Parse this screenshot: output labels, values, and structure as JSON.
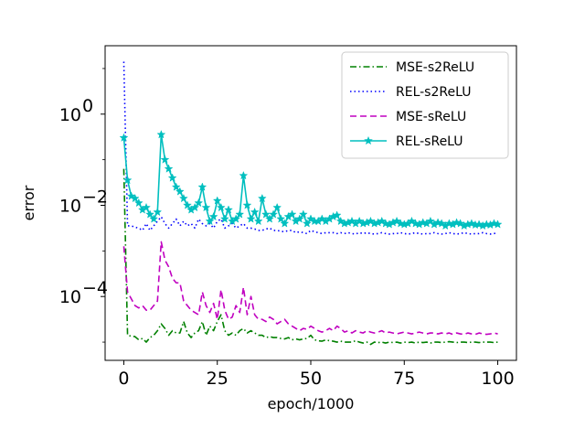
{
  "chart_data": {
    "type": "line",
    "title": "",
    "xlabel": "epoch/1000",
    "ylabel": "error",
    "yscale": "log",
    "xlim": [
      -5,
      105
    ],
    "ylim_log10": [
      -5.4,
      1.5
    ],
    "xticks": [
      0,
      25,
      50,
      75,
      100
    ],
    "xtick_labels": [
      "0",
      "25",
      "50",
      "75",
      "100"
    ],
    "yticks": [
      -4,
      -2,
      0
    ],
    "ytick_labels": [
      "10",
      "10",
      "10"
    ],
    "ytick_exponents": [
      "−4",
      "−2",
      "0"
    ],
    "grid": false,
    "legend_position": "top-right",
    "series": [
      {
        "name": "MSE-s2ReLU",
        "color": "#008000",
        "dash": "dashdot",
        "marker": "none",
        "x": [
          0,
          1,
          2,
          3,
          4,
          5,
          6,
          7,
          8,
          9,
          10,
          11,
          12,
          13,
          14,
          15,
          16,
          17,
          18,
          19,
          20,
          21,
          22,
          23,
          24,
          25,
          26,
          27,
          28,
          29,
          30,
          31,
          32,
          33,
          34,
          35,
          36,
          37,
          38,
          39,
          40,
          41,
          42,
          43,
          44,
          45,
          46,
          47,
          48,
          49,
          50,
          51,
          52,
          53,
          54,
          55,
          56,
          57,
          58,
          59,
          60,
          61,
          62,
          63,
          64,
          65,
          66,
          67,
          68,
          69,
          70,
          71,
          72,
          73,
          74,
          75,
          76,
          77,
          78,
          79,
          80,
          81,
          82,
          83,
          84,
          85,
          86,
          87,
          88,
          89,
          90,
          91,
          92,
          93,
          94,
          95,
          96,
          97,
          98,
          99,
          100
        ],
        "y_log10": [
          -1.2,
          -4.85,
          -4.87,
          -4.88,
          -4.95,
          -4.92,
          -5.0,
          -4.9,
          -4.85,
          -4.75,
          -4.6,
          -4.7,
          -4.85,
          -4.75,
          -4.8,
          -4.8,
          -4.55,
          -4.8,
          -4.9,
          -4.8,
          -4.75,
          -4.55,
          -4.85,
          -4.65,
          -4.75,
          -4.55,
          -4.4,
          -4.75,
          -4.85,
          -4.8,
          -4.85,
          -4.75,
          -4.7,
          -4.8,
          -4.75,
          -4.8,
          -4.85,
          -4.85,
          -4.9,
          -4.88,
          -4.9,
          -4.9,
          -4.92,
          -4.93,
          -4.9,
          -4.95,
          -4.93,
          -4.95,
          -4.93,
          -4.92,
          -4.85,
          -4.95,
          -4.97,
          -4.98,
          -4.95,
          -4.97,
          -4.98,
          -5.0,
          -4.98,
          -5.0,
          -5.0,
          -5.0,
          -4.97,
          -5.0,
          -5.02,
          -5.0,
          -5.05,
          -5.0,
          -5.01,
          -5.0,
          -5.02,
          -5.0,
          -5.01,
          -5.0,
          -5.02,
          -5.0,
          -5.01,
          -5.0,
          -5.02,
          -5.0,
          -5.01,
          -5.0,
          -5.02,
          -5.0,
          -5.0,
          -5.01,
          -5.0,
          -4.99,
          -5.0,
          -5.01,
          -5.0,
          -5.0,
          -5.01,
          -5.0,
          -5.0,
          -5.01,
          -5.0,
          -5.0,
          -5.0,
          -5.01,
          -5.0
        ]
      },
      {
        "name": "REL-s2ReLU",
        "color": "#0000ff",
        "dash": "dotted",
        "marker": "none",
        "x": [
          0,
          1,
          2,
          3,
          4,
          5,
          6,
          7,
          8,
          9,
          10,
          11,
          12,
          13,
          14,
          15,
          16,
          17,
          18,
          19,
          20,
          21,
          22,
          23,
          24,
          25,
          26,
          27,
          28,
          29,
          30,
          31,
          32,
          33,
          34,
          35,
          36,
          37,
          38,
          39,
          40,
          41,
          42,
          43,
          44,
          45,
          46,
          47,
          48,
          49,
          50,
          51,
          52,
          53,
          54,
          55,
          56,
          57,
          58,
          59,
          60,
          61,
          62,
          63,
          64,
          65,
          66,
          67,
          68,
          69,
          70,
          71,
          72,
          73,
          74,
          75,
          76,
          77,
          78,
          79,
          80,
          81,
          82,
          83,
          84,
          85,
          86,
          87,
          88,
          89,
          90,
          91,
          92,
          93,
          94,
          95,
          96,
          97,
          98,
          99,
          100
        ],
        "y_log10": [
          1.15,
          -2.45,
          -2.45,
          -2.48,
          -2.5,
          -2.55,
          -2.4,
          -2.55,
          -2.45,
          -2.35,
          -2.25,
          -2.4,
          -2.5,
          -2.4,
          -2.3,
          -2.45,
          -2.35,
          -2.45,
          -2.4,
          -2.5,
          -2.3,
          -2.4,
          -2.45,
          -2.4,
          -2.5,
          -2.35,
          -2.3,
          -2.5,
          -2.45,
          -2.4,
          -2.5,
          -2.45,
          -2.4,
          -2.5,
          -2.5,
          -2.52,
          -2.55,
          -2.55,
          -2.52,
          -2.5,
          -2.55,
          -2.55,
          -2.57,
          -2.58,
          -2.55,
          -2.55,
          -2.6,
          -2.58,
          -2.6,
          -2.62,
          -2.55,
          -2.58,
          -2.6,
          -2.62,
          -2.6,
          -2.6,
          -2.6,
          -2.62,
          -2.6,
          -2.62,
          -2.6,
          -2.62,
          -2.63,
          -2.6,
          -2.62,
          -2.6,
          -2.62,
          -2.63,
          -2.62,
          -2.6,
          -2.62,
          -2.63,
          -2.62,
          -2.62,
          -2.6,
          -2.62,
          -2.63,
          -2.62,
          -2.6,
          -2.62,
          -2.63,
          -2.62,
          -2.62,
          -2.6,
          -2.62,
          -2.63,
          -2.62,
          -2.6,
          -2.62,
          -2.63,
          -2.62,
          -2.6,
          -2.62,
          -2.63,
          -2.62,
          -2.62,
          -2.6,
          -2.62,
          -2.63,
          -2.62,
          -2.6
        ]
      },
      {
        "name": "MSE-sReLU",
        "color": "#c000c0",
        "dash": "dashed",
        "marker": "none",
        "x": [
          0,
          1,
          2,
          3,
          4,
          5,
          6,
          7,
          8,
          9,
          10,
          11,
          12,
          13,
          14,
          15,
          16,
          17,
          18,
          19,
          20,
          21,
          22,
          23,
          24,
          25,
          26,
          27,
          28,
          29,
          30,
          31,
          32,
          33,
          34,
          35,
          36,
          37,
          38,
          39,
          40,
          41,
          42,
          43,
          44,
          45,
          46,
          47,
          48,
          49,
          50,
          51,
          52,
          53,
          54,
          55,
          56,
          57,
          58,
          59,
          60,
          61,
          62,
          63,
          64,
          65,
          66,
          67,
          68,
          69,
          70,
          71,
          72,
          73,
          74,
          75,
          76,
          77,
          78,
          79,
          80,
          81,
          82,
          83,
          84,
          85,
          86,
          87,
          88,
          89,
          90,
          91,
          92,
          93,
          94,
          95,
          96,
          97,
          98,
          99,
          100
        ],
        "y_log10": [
          -2.9,
          -3.9,
          -4.05,
          -4.2,
          -4.25,
          -4.2,
          -4.3,
          -4.3,
          -4.2,
          -4.1,
          -2.8,
          -3.2,
          -3.35,
          -3.6,
          -3.7,
          -3.7,
          -4.1,
          -4.2,
          -4.3,
          -4.35,
          -4.4,
          -3.9,
          -4.2,
          -4.35,
          -4.15,
          -4.5,
          -3.85,
          -4.3,
          -4.5,
          -4.45,
          -4.2,
          -4.35,
          -3.8,
          -4.4,
          -4.0,
          -4.4,
          -4.5,
          -4.5,
          -4.55,
          -4.45,
          -4.5,
          -4.6,
          -4.55,
          -4.5,
          -4.6,
          -4.65,
          -4.7,
          -4.75,
          -4.7,
          -4.72,
          -4.65,
          -4.7,
          -4.75,
          -4.78,
          -4.75,
          -4.7,
          -4.75,
          -4.65,
          -4.7,
          -4.78,
          -4.75,
          -4.8,
          -4.75,
          -4.78,
          -4.8,
          -4.75,
          -4.78,
          -4.8,
          -4.78,
          -4.75,
          -4.8,
          -4.78,
          -4.8,
          -4.82,
          -4.8,
          -4.78,
          -4.8,
          -4.82,
          -4.8,
          -4.78,
          -4.8,
          -4.82,
          -4.8,
          -4.8,
          -4.82,
          -4.8,
          -4.82,
          -4.8,
          -4.83,
          -4.8,
          -4.82,
          -4.83,
          -4.8,
          -4.82,
          -4.83,
          -4.8,
          -4.82,
          -4.83,
          -4.82,
          -4.8,
          -4.82
        ]
      },
      {
        "name": "REL-sReLU",
        "color": "#00bfbf",
        "dash": "solid",
        "marker": "star",
        "x": [
          0,
          1,
          2,
          3,
          4,
          5,
          6,
          7,
          8,
          9,
          10,
          11,
          12,
          13,
          14,
          15,
          16,
          17,
          18,
          19,
          20,
          21,
          22,
          23,
          24,
          25,
          26,
          27,
          28,
          29,
          30,
          31,
          32,
          33,
          34,
          35,
          36,
          37,
          38,
          39,
          40,
          41,
          42,
          43,
          44,
          45,
          46,
          47,
          48,
          49,
          50,
          51,
          52,
          53,
          54,
          55,
          56,
          57,
          58,
          59,
          60,
          61,
          62,
          63,
          64,
          65,
          66,
          67,
          68,
          69,
          70,
          71,
          72,
          73,
          74,
          75,
          76,
          77,
          78,
          79,
          80,
          81,
          82,
          83,
          84,
          85,
          86,
          87,
          88,
          89,
          90,
          91,
          92,
          93,
          94,
          95,
          96,
          97,
          98,
          99,
          100
        ],
        "y_log10": [
          -0.52,
          -1.45,
          -1.8,
          -1.85,
          -1.95,
          -2.1,
          -2.05,
          -2.2,
          -2.3,
          -2.15,
          -0.45,
          -1.0,
          -1.2,
          -1.4,
          -1.6,
          -1.7,
          -1.85,
          -2.0,
          -2.1,
          -2.05,
          -1.95,
          -1.6,
          -2.05,
          -2.35,
          -2.25,
          -1.9,
          -2.05,
          -2.3,
          -2.1,
          -2.35,
          -2.3,
          -2.2,
          -1.35,
          -2.0,
          -2.3,
          -2.15,
          -2.35,
          -1.85,
          -2.2,
          -2.3,
          -2.2,
          -2.05,
          -2.3,
          -2.4,
          -2.25,
          -2.2,
          -2.35,
          -2.3,
          -2.2,
          -2.4,
          -2.3,
          -2.35,
          -2.35,
          -2.3,
          -2.35,
          -2.3,
          -2.25,
          -2.22,
          -2.35,
          -2.4,
          -2.38,
          -2.35,
          -2.4,
          -2.35,
          -2.4,
          -2.38,
          -2.35,
          -2.4,
          -2.38,
          -2.35,
          -2.4,
          -2.42,
          -2.38,
          -2.35,
          -2.4,
          -2.42,
          -2.4,
          -2.35,
          -2.4,
          -2.42,
          -2.38,
          -2.4,
          -2.35,
          -2.42,
          -2.38,
          -2.4,
          -2.45,
          -2.4,
          -2.42,
          -2.38,
          -2.4,
          -2.45,
          -2.42,
          -2.4,
          -2.43,
          -2.42,
          -2.45,
          -2.42,
          -2.43,
          -2.4,
          -2.42
        ]
      }
    ]
  }
}
